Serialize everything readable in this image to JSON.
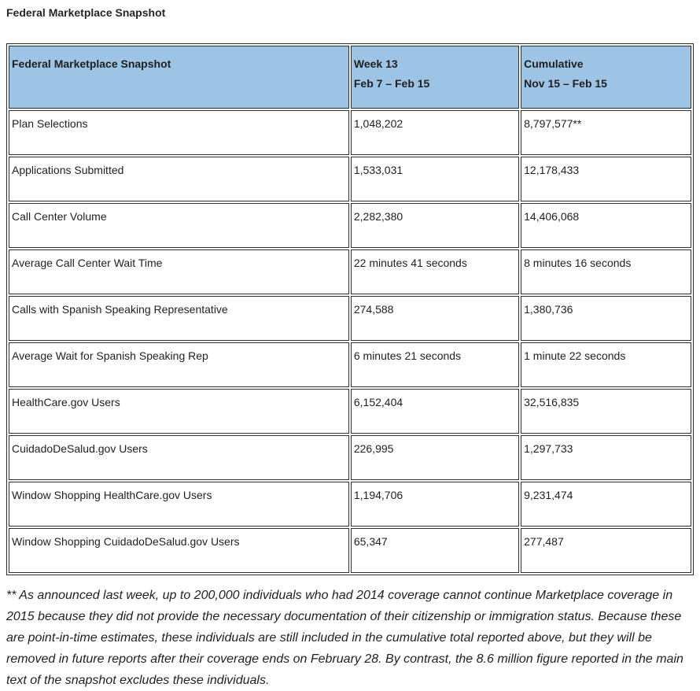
{
  "page_title": "Federal Marketplace Snapshot",
  "table": {
    "header": {
      "metric_label": "Federal Marketplace Snapshot",
      "week_label": "Week 13",
      "week_range": "Feb 7 – Feb 15",
      "cumulative_label": "Cumulative",
      "cumulative_range": "Nov 15 – Feb 15"
    },
    "rows": [
      {
        "label": "Plan Selections",
        "week13": "1,048,202",
        "cumulative": "8,797,577**"
      },
      {
        "label": "Applications Submitted",
        "week13": "1,533,031",
        "cumulative": "12,178,433"
      },
      {
        "label": "Call Center Volume",
        "week13": "2,282,380",
        "cumulative": "14,406,068"
      },
      {
        "label": "Average Call Center Wait Time",
        "week13": "22 minutes 41 seconds",
        "cumulative": "8 minutes 16 seconds"
      },
      {
        "label": "Calls with Spanish Speaking Representative",
        "week13": "274,588",
        "cumulative": "1,380,736"
      },
      {
        "label": "Average Wait for Spanish Speaking Rep",
        "week13": "6 minutes 21 seconds",
        "cumulative": "1 minute 22 seconds"
      },
      {
        "label": "HealthCare.gov Users",
        "week13": "6,152,404",
        "cumulative": "32,516,835"
      },
      {
        "label": "CuidadoDeSalud.gov Users",
        "week13": "226,995",
        "cumulative": "1,297,733"
      },
      {
        "label": "Window Shopping HealthCare.gov Users",
        "week13": "1,194,706",
        "cumulative": "9,231,474"
      },
      {
        "label": "Window Shopping CuidadoDeSalud.gov Users",
        "week13": "65,347",
        "cumulative": "277,487"
      }
    ]
  },
  "footnote": "** As announced last week, up to 200,000 individuals who had 2014 coverage cannot continue Marketplace coverage in 2015 because they did not provide the necessary documentation of their citizenship or immigration status. Because these are point-in-time estimates, these individuals are still included in the cumulative total reported above, but they will be removed in future reports after their coverage ends on February 28. By contrast, the 8.6 million figure reported in the main text of the snapshot excludes these individuals.",
  "colors": {
    "header_bg": "#9DC4E5",
    "border": "#2e2e2e",
    "text": "#1f1f1f"
  }
}
